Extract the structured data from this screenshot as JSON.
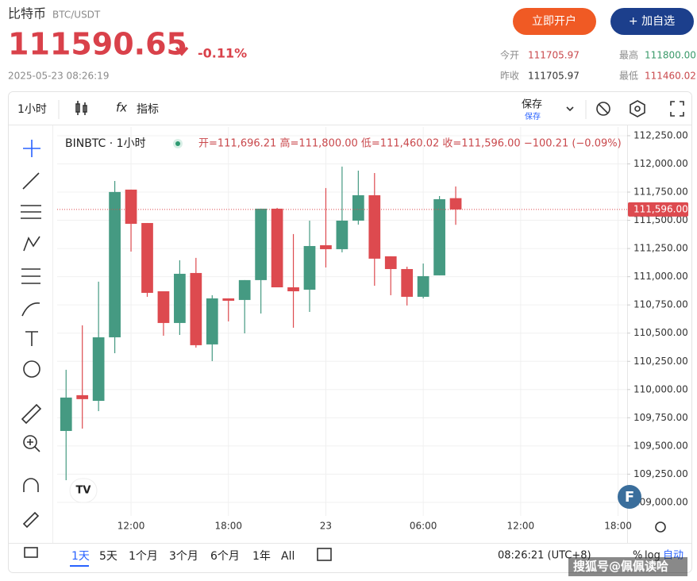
{
  "header": {
    "name": "比特币",
    "pair": "BTC/USDT",
    "price": "111590.65",
    "change": "-0.11%",
    "timestamp": "2025-05-23 08:26:19",
    "buttons": [
      "立即开户",
      "+ 加自选"
    ],
    "stats": [
      {
        "label": "今开",
        "value": "111705.97"
      },
      {
        "label": "最高",
        "value": "111800.00"
      },
      {
        "label": "昨收",
        "value": "111705.97"
      },
      {
        "label": "最低",
        "value": "111460.02"
      }
    ]
  },
  "toolbar": {
    "interval": "1小时",
    "fx": "fx",
    "indicators": "指标",
    "save": "保存",
    "save_sub": "保存"
  },
  "legend": {
    "symbol": "BINBTC · 1小时",
    "ohlc": "开=111,696.21 高=111,800.00 低=111,460.02 收=111,596.00 −100.21 (−0.09%)"
  },
  "chart_data": {
    "type": "candlestick",
    "x": [
      8,
      9,
      10,
      11,
      12,
      13,
      14,
      15,
      16,
      17,
      18,
      19,
      20,
      21,
      22,
      23,
      24,
      25,
      26,
      27,
      28,
      29,
      30,
      31,
      32
    ],
    "open": [
      109633,
      109950,
      109900,
      110463,
      111772,
      111476,
      110871,
      110590,
      111033,
      110400,
      110808,
      110794,
      110970,
      111603,
      110906,
      110885,
      111279,
      111244,
      111497,
      111722,
      111181,
      111068,
      110822,
      111012,
      111696.21
    ],
    "high": [
      110175,
      110569,
      110956,
      111849,
      111772,
      111476,
      110871,
      111146,
      111167,
      110836,
      110808,
      110970,
      111603,
      111610,
      111378,
      111497,
      111786,
      111976,
      111940,
      111919,
      111181,
      111089,
      111117,
      111715,
      111800
    ],
    "low": [
      109197,
      109654,
      109809,
      110322,
      111223,
      110822,
      110477,
      110484,
      110372,
      110252,
      110604,
      110498,
      110674,
      110906,
      110548,
      110688,
      111082,
      111216,
      111462,
      110920,
      110836,
      110745,
      110808,
      111012,
      111460.02
    ],
    "close": [
      109929,
      109915,
      110463,
      111751,
      111469,
      110857,
      110590,
      111026,
      110393,
      110808,
      110787,
      110970,
      111603,
      110906,
      110871,
      111272,
      111244,
      111497,
      111722,
      111160,
      111068,
      110822,
      111005,
      111687,
      111596
    ],
    "up_color": "#459a82",
    "down_color": "#dd4a4f",
    "current_price": {
      "value": 111596,
      "label": "111,596.00"
    },
    "xlim": [
      7.45,
      42.56
    ],
    "xticks": [
      {
        "value": 12,
        "label": "12:00"
      },
      {
        "value": 18,
        "label": "18:00"
      },
      {
        "value": 24,
        "label": "23"
      },
      {
        "value": 30,
        "label": "06:00"
      },
      {
        "value": 36,
        "label": "12:00"
      },
      {
        "value": 42,
        "label": "18:00"
      }
    ],
    "ylim": [
      108880,
      112327
    ],
    "yticks": [
      {
        "value": 109000,
        "label": "109,000.00"
      },
      {
        "value": 109250,
        "label": "109,250.00"
      },
      {
        "value": 109500,
        "label": "109,500.00"
      },
      {
        "value": 109750,
        "label": "109,750.00"
      },
      {
        "value": 110000,
        "label": "110,000.00"
      },
      {
        "value": 110250,
        "label": "110,250.00"
      },
      {
        "value": 110500,
        "label": "110,500.00"
      },
      {
        "value": 110750,
        "label": "110,750.00"
      },
      {
        "value": 111000,
        "label": "111,000.00"
      },
      {
        "value": 111250,
        "label": "111,250.00"
      },
      {
        "value": 111500,
        "label": "111,500.00"
      },
      {
        "value": 111750,
        "label": "111,750.00"
      },
      {
        "value": 112000,
        "label": "112,000.00"
      },
      {
        "value": 112250,
        "label": "112,250.00"
      }
    ],
    "grid": true
  },
  "footer": {
    "ranges": [
      "1天",
      "5天",
      "1个月",
      "3个月",
      "6个月",
      "1年",
      "All"
    ],
    "time": "08:26:21 (UTC+8)",
    "percent": "%",
    "log": "log",
    "auto": "自动",
    "watermark": "搜狐号@佩佩读哈"
  }
}
